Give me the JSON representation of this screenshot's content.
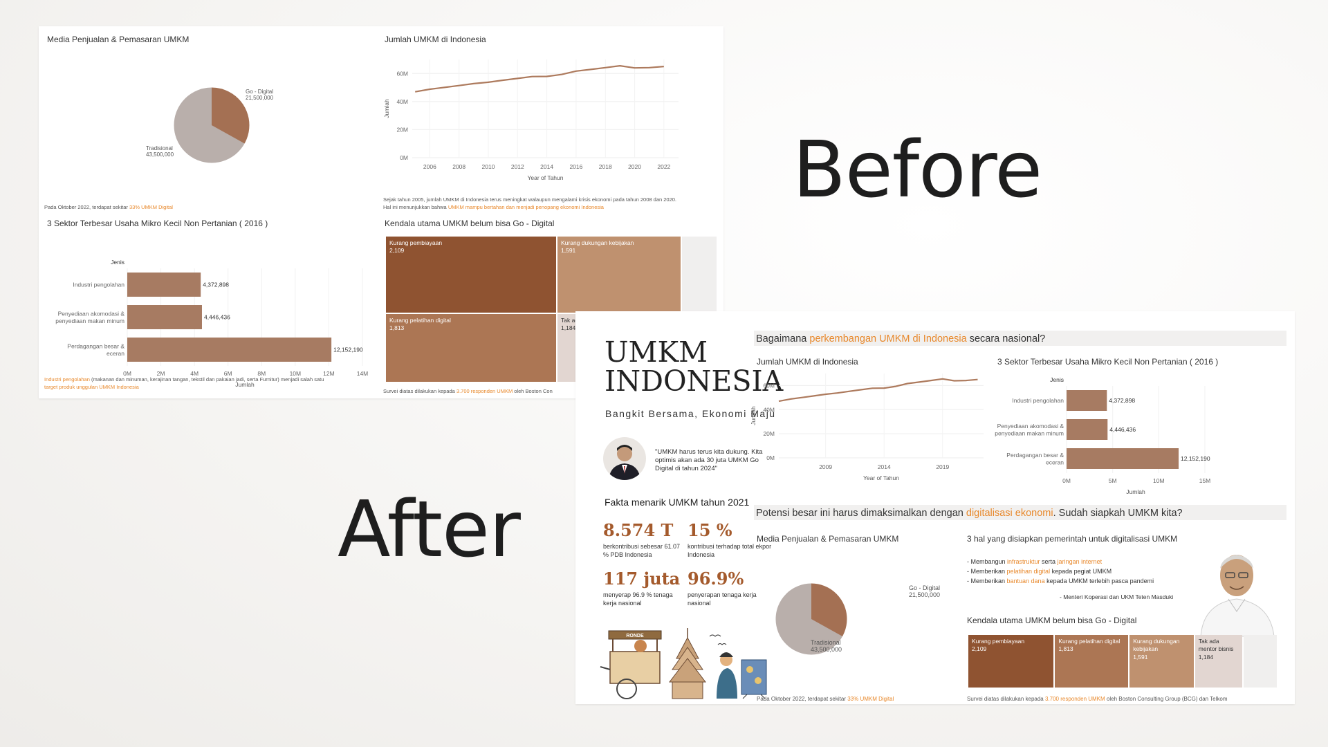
{
  "labels": {
    "before": "Before",
    "after": "After"
  },
  "colors": {
    "bar": "#a77b62",
    "line": "#ad7a5d",
    "pie_traditional": "#b9afab",
    "pie_digital": "#a47053",
    "accent": "#e8882b",
    "tm1": "#8f5331",
    "tm2": "#ac7654",
    "tm3": "#bf916f",
    "tm4": "#e2d6d1",
    "tm5": "#f0efee"
  },
  "before": {
    "pie_title": "Media Penjualan & Pemasaran UMKM",
    "pie_digital_label": "Go - Digital",
    "pie_digital_value": "21,500,000",
    "pie_trad_label": "Tradisional",
    "pie_trad_value": "43,500,000",
    "pie_note_pre": "Pada Oktober 2022, terdapat sekitar ",
    "pie_note_hl": "33% UMKM Digital",
    "line_title": "Jumlah UMKM di Indonesia",
    "line_ylabel": "Jumlah",
    "line_xlabel": "Year of Tahun",
    "line_note_1": "Sejak tahun 2005, jumlah UMKM di Indonesia terus meningkat walaupun mengalami krisis ekonomi pada tahun 2008 dan 2020.",
    "line_note_2_pre": "Hal ini menunjukkan bahwa ",
    "line_note_2_hl": "UMKM mampu bertahan dan menjadi penopang ekonomi Indonesia",
    "bar_title": "3 Sektor Terbesar Usaha Mikro Kecil Non Pertanian ( 2016 )",
    "bar_header": "Jenis",
    "bar_xlabel": "Jumlah",
    "bar_note_hl1": "Industri pengolahan",
    "bar_note_1": " (makanan dan minuman, kerajinan tangan, tekstil dan pakaian jadi,  serta Furnitur) menjadi salah satu",
    "bar_note_hl2": "target produk unggulan UMKM Indonesia",
    "tm_title": "Kendala utama UMKM belum bisa Go - Digital",
    "tm_note_pre": "Survei diatas dilakukan kepada ",
    "tm_note_hl": "3.700 responden UMKM",
    "tm_note_post": " oleh Boston Con"
  },
  "after": {
    "brand_line1": "UMKM",
    "brand_line2": "INDONESIA",
    "tagline": "Bangkit Bersama, Ekonomi Maju",
    "quote": "\"UMKM harus terus kita dukung. Kita optimis akan ada 30 juta UMKM Go Digital di tahun 2024\"",
    "facts_title": "Fakta menarik UMKM tahun 2021",
    "facts": [
      {
        "num": "8.574 T",
        "desc": "berkontribusi sebesar 61.07 % PDB Indonesia"
      },
      {
        "num": "15 %",
        "desc": "kontribusi terhadap total ekpor Indonesia"
      },
      {
        "num": "117 juta",
        "desc": "menyerap 96.9 % tenaga kerja nasional"
      },
      {
        "num": "96.9%",
        "desc": "penyerapan tenaga kerja nasional"
      }
    ],
    "cart_sign": "RONDE",
    "q1_pre": "Bagaimana ",
    "q1_hl": "perkembangan UMKM di Indonesia",
    "q1_post": " secara nasional?",
    "line_title": "Jumlah UMKM di Indonesia",
    "line_ylabel": "Jumlah",
    "line_xlabel": "Year of Tahun",
    "bar_title": "3 Sektor Terbesar Usaha Mikro Kecil Non Pertanian ( 2016 )",
    "bar_header": "Jenis",
    "bar_xlabel": "Jumlah",
    "q2_pre": "Potensi besar ini harus dimaksimalkan dengan ",
    "q2_hl": "digitalisasi ekonomi",
    "q2_post": ". Sudah siapkah UMKM kita?",
    "pie_title": "Media Penjualan & Pemasaran UMKM",
    "pie_digital_label": "Go - Digital",
    "pie_digital_value": "21,500,000",
    "pie_trad_label": "Tradisional",
    "pie_trad_value": "43,500,000",
    "gov_title": "3 hal yang disiapkan pemerintah untuk digitalisasi UMKM",
    "gov_items": [
      {
        "pre": "- Membangun ",
        "hl": "infrastruktur",
        "mid": " serta ",
        "hl2": "jaringan internet",
        "post": ""
      },
      {
        "pre": "- Memberikan ",
        "hl": "pelatihan digital",
        "mid": " kepada pegiat UMKM",
        "hl2": "",
        "post": ""
      },
      {
        "pre": "- Memberikan ",
        "hl": "bantuan dana",
        "mid": " kepada UMKM terlebih pasca pandemi",
        "hl2": "",
        "post": ""
      }
    ],
    "gov_source": "- Menteri Koperasi dan UKM Teten Masduki",
    "tm_title": "Kendala utama UMKM belum bisa Go - Digital",
    "pie_note_pre": "Pada Oktober 2022, terdapat sekitar ",
    "pie_note_hl": "33% UMKM Digital",
    "tm_note_pre": "Survei diatas dilakukan kepada ",
    "tm_note_hl": "3.700 responden UMKM",
    "tm_note_post": " oleh Boston Consulting Group (BCG) dan Telkom"
  },
  "chart_data": [
    {
      "type": "pie",
      "title": "Media Penjualan & Pemasaran UMKM",
      "slices": [
        {
          "label": "Go - Digital",
          "value": 21500000
        },
        {
          "label": "Tradisional",
          "value": 43500000
        }
      ]
    },
    {
      "type": "line",
      "title": "Jumlah UMKM di Indonesia",
      "xlabel": "Year of Tahun",
      "ylabel": "Jumlah",
      "x": [
        2005,
        2006,
        2007,
        2008,
        2009,
        2010,
        2011,
        2012,
        2013,
        2014,
        2015,
        2016,
        2017,
        2018,
        2019,
        2020,
        2021,
        2022
      ],
      "y": [
        47.0,
        48.8,
        50.1,
        51.4,
        52.8,
        53.8,
        55.2,
        56.5,
        57.8,
        57.9,
        59.3,
        61.7,
        62.9,
        64.2,
        65.5,
        64.0,
        64.2,
        65.0
      ],
      "y_unit": "M",
      "before_ticks_x": [
        "2006",
        "2008",
        "2010",
        "2012",
        "2014",
        "2016",
        "2018",
        "2020",
        "2022"
      ],
      "before_ticks_y": [
        "0M",
        "20M",
        "40M",
        "60M"
      ],
      "after_ticks_x": [
        "2009",
        "2014",
        "2019"
      ],
      "after_ticks_y": [
        "0M",
        "20M",
        "40M",
        "60M"
      ],
      "ylim": [
        0,
        70
      ]
    },
    {
      "type": "bar",
      "title": "3 Sektor Terbesar Usaha Mikro Kecil Non Pertanian ( 2016 )",
      "xlabel": "Jumlah",
      "ylabel": "Jenis",
      "categories": [
        [
          "Industri pengolahan"
        ],
        [
          "Penyediaan akomodasi &",
          "penyediaan makan minum"
        ],
        [
          "Perdagangan besar &",
          "eceran"
        ]
      ],
      "values": [
        4372898,
        4446436,
        12152190
      ],
      "value_labels": [
        "4,372,898",
        "4,446,436",
        "12,152,190"
      ],
      "before_ticks_x": [
        "0M",
        "2M",
        "4M",
        "6M",
        "8M",
        "10M",
        "12M",
        "14M"
      ],
      "before_xlim": [
        0,
        14000000
      ],
      "after_ticks_x": [
        "0M",
        "5M",
        "10M",
        "15M"
      ],
      "after_xlim": [
        0,
        15000000
      ]
    },
    {
      "type": "treemap",
      "title": "Kendala utama UMKM belum bisa Go - Digital",
      "items": [
        {
          "label": "Kurang pembiayaan",
          "value": 2109,
          "value_label": "2,109"
        },
        {
          "label": "Kurang pelatihan digital",
          "value": 1813,
          "value_label": "1,813"
        },
        {
          "label": "Kurang dukungan kebijakan",
          "value": 1591,
          "value_label": "1,591"
        },
        {
          "label": "Tak ada mentor bisnis",
          "value": 1184,
          "value_label": "1,184"
        }
      ]
    }
  ]
}
